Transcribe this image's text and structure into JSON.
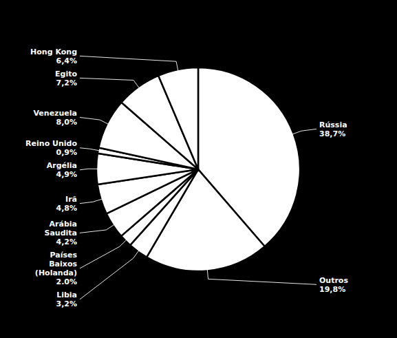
{
  "chart_data": {
    "type": "pie",
    "categories": [
      "Rússia",
      "Outros",
      "Libia",
      "Países\nBaixos\n(Holanda)",
      "Arábia\nSaudita",
      "Irã",
      "Argélia",
      "Reino Unido",
      "Venezuela",
      "Egito",
      "Hong Kong"
    ],
    "values": [
      38.7,
      19.8,
      3.2,
      2.0,
      4.2,
      4.8,
      4.9,
      0.9,
      8.0,
      7.2,
      6.4
    ],
    "value_labels": [
      "38,7%",
      "19,8%",
      "3,2%",
      "2.0%",
      "4,2%",
      "4,8%",
      "4,9%",
      "0,9%",
      "8,0%",
      "7,2%",
      "6,4%"
    ],
    "color": "#ffffff"
  }
}
